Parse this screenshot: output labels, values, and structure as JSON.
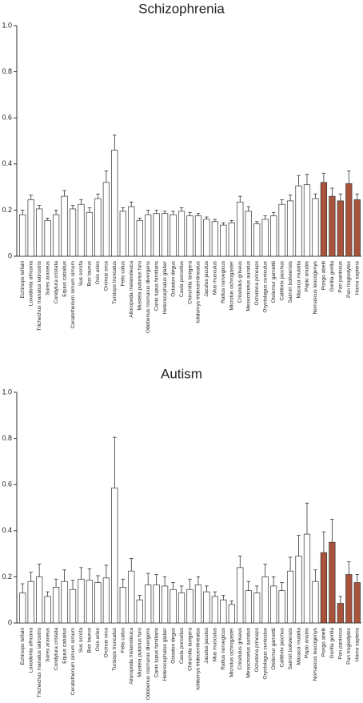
{
  "chart_data": [
    {
      "type": "bar",
      "title": "Schizophrenia",
      "categories": [
        "Echinops telfairi",
        "Loxodonta africana",
        "Trichechus manatus latirostris",
        "Sorex araneus",
        "Condylura cristata",
        "Equus caballus",
        "Ceratotherium simum simum",
        "Sus scrofa",
        "Bos taurus",
        "Ovis aries",
        "Orcinus orca",
        "Tursiops truncatus",
        "Felis catus",
        "Ailuropoda melanoleuca",
        "Mustela putorius furo",
        "Odobenus rosmarus divergens",
        "Canis lupus familiaris",
        "Heterocephalus glaber",
        "Octodon degus",
        "Cavia porcellus",
        "Chinchilla lanigera",
        "Ictidomys tridecemlineatus",
        "Jaculus jaculus",
        "Mus musculus",
        "Rattus norvegicus",
        "Microtus ochrogaster",
        "Cricetulus griseus",
        "Mesocricetus auratus",
        "Ochotona princeps",
        "Oryctolagus cuniculus",
        "Otolemur garnettii",
        "Callithrix jacchus",
        "Saimiri boliviensis",
        "Macaca mulatta",
        "Papio anubis",
        "Nomascus leucogenys",
        "Pongo abelii",
        "Gorilla gorilla",
        "Pan paniscus",
        "Pan troglodytes",
        "Homo sapiens"
      ],
      "values": [
        0.18,
        0.245,
        0.205,
        0.155,
        0.18,
        0.26,
        0.205,
        0.225,
        0.19,
        0.25,
        0.32,
        0.46,
        0.195,
        0.215,
        0.155,
        0.18,
        0.185,
        0.185,
        0.18,
        0.195,
        0.175,
        0.175,
        0.16,
        0.15,
        0.135,
        0.145,
        0.235,
        0.195,
        0.14,
        0.16,
        0.175,
        0.225,
        0.24,
        0.305,
        0.31,
        0.25,
        0.32,
        0.26,
        0.24,
        0.315,
        0.245
      ],
      "errors": [
        0.02,
        0.02,
        0.015,
        0.01,
        0.02,
        0.025,
        0.015,
        0.02,
        0.02,
        0.02,
        0.05,
        0.065,
        0.015,
        0.02,
        0.01,
        0.02,
        0.015,
        0.01,
        0.015,
        0.015,
        0.015,
        0.01,
        0.01,
        0.01,
        0.01,
        0.01,
        0.025,
        0.02,
        0.01,
        0.015,
        0.015,
        0.02,
        0.025,
        0.045,
        0.045,
        0.02,
        0.04,
        0.035,
        0.03,
        0.055,
        0.025
      ],
      "colors": [
        "#ffffff",
        "#ffffff",
        "#ffffff",
        "#ffffff",
        "#ffffff",
        "#ffffff",
        "#ffffff",
        "#ffffff",
        "#ffffff",
        "#ffffff",
        "#ffffff",
        "#ffffff",
        "#ffffff",
        "#ffffff",
        "#ffffff",
        "#ffffff",
        "#ffffff",
        "#ffffff",
        "#ffffff",
        "#ffffff",
        "#ffffff",
        "#ffffff",
        "#ffffff",
        "#ffffff",
        "#ffffff",
        "#ffffff",
        "#ffffff",
        "#ffffff",
        "#ffffff",
        "#ffffff",
        "#ffffff",
        "#ffffff",
        "#ffffff",
        "#ffffff",
        "#ffffff",
        "#ffffff",
        "#a9533a",
        "#a9533a",
        "#a9533a",
        "#a9533a",
        "#a9533a"
      ],
      "ylim": [
        0,
        1
      ],
      "yticks": [
        0,
        0.2,
        0.4,
        0.6,
        0.8,
        {
          "value": 1,
          "label": "1.0"
        }
      ]
    },
    {
      "type": "bar",
      "title": "Autism",
      "categories": [
        "Echinops telfairi",
        "Loxodonta africana",
        "Trichechus manatus latirostris",
        "Sorex araneus",
        "Condylura cristata",
        "Equus caballus",
        "Ceratotherium simum simum",
        "Sus scrofa",
        "Bos taurus",
        "Ovis aries",
        "Orcinus orca",
        "Tursiops truncatus",
        "Felis catus",
        "Ailuropoda melanoleuca",
        "Mustela putorius furo",
        "Odobenus rosmarus divergens",
        "Canis lupus familiaris",
        "Heterocephalus glaber",
        "Octodon degus",
        "Cavia porcellus",
        "Chinchilla lanigera",
        "Ictidomys tridecemlineatus",
        "Jaculus jaculus",
        "Mus musculus",
        "Rattus norvegicus",
        "Microtus ochrogaster",
        "Cricetulus griseus",
        "Mesocricetus auratus",
        "Ochotona princeps",
        "Oryctolagus cuniculus",
        "Otolemur garnettii",
        "Callithrix jacchus",
        "Saimiri boliviensis",
        "Macaca mulatta",
        "Papio anubis",
        "Nomascus leucogenys",
        "Pongo abelii",
        "Gorilla gorilla",
        "Pan paniscus",
        "Pan troglodytes",
        "Homo sapiens"
      ],
      "values": [
        0.13,
        0.18,
        0.2,
        0.115,
        0.155,
        0.18,
        0.145,
        0.19,
        0.185,
        0.175,
        0.195,
        0.585,
        0.155,
        0.225,
        0.1,
        0.165,
        0.165,
        0.16,
        0.145,
        0.13,
        0.145,
        0.165,
        0.135,
        0.115,
        0.1,
        0.08,
        0.24,
        0.14,
        0.13,
        0.2,
        0.16,
        0.14,
        0.225,
        0.29,
        0.385,
        0.18,
        0.305,
        0.35,
        0.085,
        0.21,
        0.175
      ],
      "errors": [
        0.04,
        0.04,
        0.055,
        0.02,
        0.035,
        0.05,
        0.04,
        0.05,
        0.05,
        0.03,
        0.055,
        0.22,
        0.035,
        0.055,
        0.02,
        0.05,
        0.045,
        0.04,
        0.03,
        0.03,
        0.045,
        0.035,
        0.025,
        0.02,
        0.02,
        0.015,
        0.05,
        0.04,
        0.03,
        0.055,
        0.04,
        0.035,
        0.06,
        0.09,
        0.135,
        0.05,
        0.09,
        0.1,
        0.03,
        0.055,
        0.035
      ],
      "colors": [
        "#ffffff",
        "#ffffff",
        "#ffffff",
        "#ffffff",
        "#ffffff",
        "#ffffff",
        "#ffffff",
        "#ffffff",
        "#ffffff",
        "#ffffff",
        "#ffffff",
        "#ffffff",
        "#ffffff",
        "#ffffff",
        "#ffffff",
        "#ffffff",
        "#ffffff",
        "#ffffff",
        "#ffffff",
        "#ffffff",
        "#ffffff",
        "#ffffff",
        "#ffffff",
        "#ffffff",
        "#ffffff",
        "#ffffff",
        "#ffffff",
        "#ffffff",
        "#ffffff",
        "#ffffff",
        "#ffffff",
        "#ffffff",
        "#ffffff",
        "#ffffff",
        "#ffffff",
        "#ffffff",
        "#a9533a",
        "#a9533a",
        "#a9533a",
        "#a9533a",
        "#a9533a"
      ],
      "ylim": [
        0,
        1
      ],
      "yticks": [
        0,
        0.2,
        0.4,
        0.6,
        0.8,
        {
          "value": 1,
          "label": "1.0"
        }
      ]
    }
  ]
}
